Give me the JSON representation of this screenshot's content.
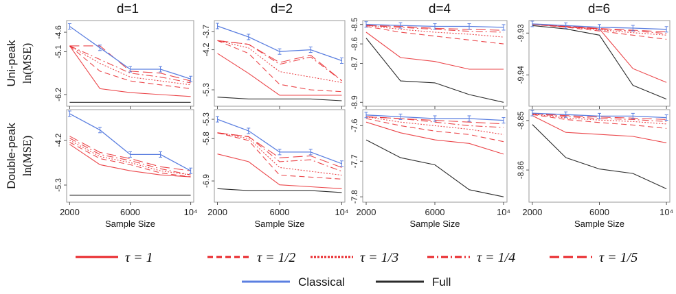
{
  "figure": {
    "column_titles": [
      "d=1",
      "d=2",
      "d=4",
      "d=6"
    ],
    "row_labels": [
      {
        "line1": "Uni-peak",
        "line2": "ln(MSE)"
      },
      {
        "line1": "Double-peak",
        "line2": "ln(MSE)"
      }
    ],
    "xlabel": "Sample Size",
    "xticks": [
      "2000",
      "6000",
      "10⁴"
    ],
    "colors": {
      "tau": "#e8262a",
      "classical": "#5b7fe0",
      "full": "#2b2b2b",
      "frame": "#9a9a9a"
    },
    "legend": [
      {
        "label": "τ = 1",
        "style": "solid",
        "color": "#e8262a"
      },
      {
        "label": "τ = 1/2",
        "style": "dashed",
        "color": "#e8262a"
      },
      {
        "label": "τ = 1/3",
        "style": "dotted",
        "color": "#e8262a"
      },
      {
        "label": "τ = 1/4",
        "style": "dashdot",
        "color": "#e8262a"
      },
      {
        "label": "τ = 1/5",
        "style": "longdash",
        "color": "#e8262a"
      },
      {
        "label": "Classical",
        "style": "solid",
        "color": "#5b7fe0"
      },
      {
        "label": "Full",
        "style": "solid",
        "color": "#2b2b2b"
      }
    ]
  },
  "chart_data": [
    {
      "type": "line",
      "title": "d=1",
      "row": "Uni-peak",
      "ylabel": "ln(MSE)",
      "xlabel": "",
      "x": [
        2000,
        4000,
        6000,
        8000,
        10000
      ],
      "ylim": [
        -6.5,
        -4.3
      ],
      "yticks": [
        -4.6,
        -5.1,
        -6.2
      ],
      "series": [
        {
          "name": "Classical",
          "values": [
            -4.45,
            -5.0,
            -5.55,
            -5.55,
            -5.8
          ]
        },
        {
          "name": "τ = 1/5",
          "values": [
            -4.95,
            -4.95,
            -5.6,
            -5.65,
            -5.85
          ]
        },
        {
          "name": "τ = 1/4",
          "values": [
            -4.95,
            -5.3,
            -5.65,
            -5.75,
            -5.9
          ]
        },
        {
          "name": "τ = 1/3",
          "values": [
            -4.95,
            -5.4,
            -5.75,
            -5.85,
            -5.95
          ]
        },
        {
          "name": "τ = 1/2",
          "values": [
            -4.95,
            -5.6,
            -5.85,
            -5.95,
            -6.05
          ]
        },
        {
          "name": "τ = 1",
          "values": [
            -4.95,
            -6.05,
            -6.15,
            -6.2,
            -6.25
          ]
        },
        {
          "name": "Full",
          "values": [
            -6.4,
            -6.4,
            -6.4,
            -6.4,
            -6.4
          ]
        }
      ]
    },
    {
      "type": "line",
      "title": "d=2",
      "row": "Uni-peak",
      "ylabel": "",
      "xlabel": "",
      "x": [
        2000,
        4000,
        6000,
        8000,
        10000
      ],
      "ylim": [
        -5.75,
        -3.4
      ],
      "yticks": [
        -3.7,
        -4.2,
        -5.3
      ],
      "series": [
        {
          "name": "Classical",
          "values": [
            -3.55,
            -3.85,
            -4.25,
            -4.2,
            -4.5
          ]
        },
        {
          "name": "τ = 1/5",
          "values": [
            -3.95,
            -4.05,
            -4.55,
            -4.35,
            -5.05
          ]
        },
        {
          "name": "τ = 1/4",
          "values": [
            -3.95,
            -4.05,
            -4.6,
            -4.4,
            -5.05
          ]
        },
        {
          "name": "τ = 1/3",
          "values": [
            -3.95,
            -4.15,
            -4.8,
            -4.95,
            -5.1
          ]
        },
        {
          "name": "τ = 1/2",
          "values": [
            -3.95,
            -4.3,
            -5.15,
            -5.3,
            -5.35
          ]
        },
        {
          "name": "τ = 1",
          "values": [
            -4.3,
            -4.85,
            -5.45,
            -5.45,
            -5.45
          ]
        },
        {
          "name": "Full",
          "values": [
            -5.5,
            -5.55,
            -5.55,
            -5.55,
            -5.6
          ]
        }
      ]
    },
    {
      "type": "line",
      "title": "d=4",
      "row": "Uni-peak",
      "ylabel": "",
      "xlabel": "",
      "x": [
        2000,
        4000,
        6000,
        8000,
        10000
      ],
      "ylim": [
        -8.92,
        -8.48
      ],
      "yticks": [
        -8.5,
        -8.6,
        -8.7,
        -8.9
      ],
      "series": [
        {
          "name": "Classical",
          "values": [
            -8.5,
            -8.505,
            -8.51,
            -8.51,
            -8.515
          ]
        },
        {
          "name": "τ = 1/5",
          "values": [
            -8.505,
            -8.51,
            -8.52,
            -8.525,
            -8.53
          ]
        },
        {
          "name": "τ = 1/4",
          "values": [
            -8.505,
            -8.515,
            -8.525,
            -8.535,
            -8.54
          ]
        },
        {
          "name": "τ = 1/3",
          "values": [
            -8.505,
            -8.525,
            -8.54,
            -8.55,
            -8.565
          ]
        },
        {
          "name": "τ = 1/2",
          "values": [
            -8.51,
            -8.54,
            -8.56,
            -8.58,
            -8.6
          ]
        },
        {
          "name": "τ = 1",
          "values": [
            -8.54,
            -8.67,
            -8.69,
            -8.73,
            -8.73
          ]
        },
        {
          "name": "Full",
          "values": [
            -8.57,
            -8.79,
            -8.8,
            -8.86,
            -8.9
          ]
        }
      ]
    },
    {
      "type": "line",
      "title": "d=6",
      "row": "Uni-peak",
      "ylabel": "",
      "xlabel": "",
      "x": [
        2000,
        4000,
        6000,
        8000,
        10000
      ],
      "ylim": [
        -9.9475,
        -9.927
      ],
      "yticks": [
        -9.93,
        -9.94
      ],
      "series": [
        {
          "name": "Classical",
          "values": [
            -9.9278,
            -9.9282,
            -9.9286,
            -9.9288,
            -9.9291
          ]
        },
        {
          "name": "τ = 1/5",
          "values": [
            -9.9278,
            -9.9283,
            -9.9289,
            -9.9293,
            -9.9297
          ]
        },
        {
          "name": "τ = 1/4",
          "values": [
            -9.9278,
            -9.9284,
            -9.929,
            -9.9295,
            -9.9301
          ]
        },
        {
          "name": "τ = 1/3",
          "values": [
            -9.9279,
            -9.9285,
            -9.9292,
            -9.9299,
            -9.9305
          ]
        },
        {
          "name": "τ = 1/2",
          "values": [
            -9.9279,
            -9.9286,
            -9.9295,
            -9.9305,
            -9.9315
          ]
        },
        {
          "name": "τ = 1",
          "values": [
            -9.9279,
            -9.9285,
            -9.929,
            -9.9385,
            -9.9418
          ]
        },
        {
          "name": "Full",
          "values": [
            -9.9282,
            -9.929,
            -9.9305,
            -9.9425,
            -9.9458
          ]
        }
      ]
    },
    {
      "type": "line",
      "title": "",
      "row": "Double-peak",
      "ylabel": "ln(MSE)",
      "xlabel": "Sample Size",
      "x": [
        2000,
        4000,
        6000,
        8000,
        10000
      ],
      "ylim": [
        -5.72,
        -3.45
      ],
      "yticks": [
        -4.2,
        -5.3
      ],
      "series": [
        {
          "name": "Classical",
          "values": [
            -3.55,
            -3.95,
            -4.55,
            -4.55,
            -4.95
          ]
        },
        {
          "name": "τ = 1/5",
          "values": [
            -4.1,
            -4.5,
            -4.65,
            -4.85,
            -4.95
          ]
        },
        {
          "name": "τ = 1/4",
          "values": [
            -4.15,
            -4.55,
            -4.7,
            -4.9,
            -5.05
          ]
        },
        {
          "name": "τ = 1/3",
          "values": [
            -4.2,
            -4.6,
            -4.75,
            -4.95,
            -5.05
          ]
        },
        {
          "name": "τ = 1/2",
          "values": [
            -4.25,
            -4.65,
            -4.8,
            -5.0,
            -5.1
          ]
        },
        {
          "name": "τ = 1",
          "values": [
            -4.3,
            -4.8,
            -4.95,
            -5.05,
            -5.1
          ]
        },
        {
          "name": "Full",
          "values": [
            -5.55,
            -5.55,
            -5.55,
            -5.55,
            -5.55
          ]
        }
      ]
    },
    {
      "type": "line",
      "title": "",
      "row": "Double-peak",
      "ylabel": "",
      "xlabel": "Sample Size",
      "x": [
        2000,
        4000,
        6000,
        8000,
        10000
      ],
      "ylim": [
        -7.45,
        -5.05
      ],
      "yticks": [
        -5.3,
        -5.8,
        -6.9
      ],
      "series": [
        {
          "name": "Classical",
          "values": [
            -5.3,
            -5.6,
            -6.15,
            -6.15,
            -6.45
          ]
        },
        {
          "name": "τ = 1/5",
          "values": [
            -5.65,
            -5.75,
            -6.3,
            -6.25,
            -6.55
          ]
        },
        {
          "name": "τ = 1/4",
          "values": [
            -5.65,
            -5.75,
            -6.4,
            -6.35,
            -6.65
          ]
        },
        {
          "name": "τ = 1/3",
          "values": [
            -5.65,
            -5.8,
            -6.55,
            -6.65,
            -6.75
          ]
        },
        {
          "name": "τ = 1/2",
          "values": [
            -5.65,
            -5.85,
            -6.75,
            -6.8,
            -6.85
          ]
        },
        {
          "name": "τ = 1",
          "values": [
            -6.2,
            -6.4,
            -7.0,
            -7.05,
            -7.1
          ]
        },
        {
          "name": "Full",
          "values": [
            -7.1,
            -7.15,
            -7.15,
            -7.15,
            -7.2
          ]
        }
      ]
    },
    {
      "type": "line",
      "title": "",
      "row": "Double-peak",
      "ylabel": "",
      "xlabel": "Sample Size",
      "x": [
        2000,
        4000,
        6000,
        8000,
        10000
      ],
      "ylim": [
        -7.815,
        -7.555
      ],
      "yticks": [
        -7.6,
        -7.7,
        -7.8
      ],
      "series": [
        {
          "name": "Classical",
          "values": [
            -7.57,
            -7.575,
            -7.58,
            -7.58,
            -7.585
          ]
        },
        {
          "name": "τ = 1/5",
          "values": [
            -7.575,
            -7.58,
            -7.585,
            -7.59,
            -7.595
          ]
        },
        {
          "name": "τ = 1/4",
          "values": [
            -7.575,
            -7.58,
            -7.59,
            -7.6,
            -7.605
          ]
        },
        {
          "name": "τ = 1/3",
          "values": [
            -7.575,
            -7.59,
            -7.6,
            -7.61,
            -7.625
          ]
        },
        {
          "name": "τ = 1/2",
          "values": [
            -7.58,
            -7.6,
            -7.615,
            -7.625,
            -7.645
          ]
        },
        {
          "name": "τ = 1",
          "values": [
            -7.59,
            -7.62,
            -7.64,
            -7.65,
            -7.68
          ]
        },
        {
          "name": "Full",
          "values": [
            -7.64,
            -7.69,
            -7.71,
            -7.78,
            -7.8
          ]
        }
      ]
    },
    {
      "type": "line",
      "title": "",
      "row": "Double-peak",
      "ylabel": "",
      "xlabel": "Sample Size",
      "x": [
        2000,
        4000,
        6000,
        8000,
        10000
      ],
      "ylim": [
        -8.8665,
        -8.8478
      ],
      "yticks": [
        -8.85,
        -8.86
      ],
      "series": [
        {
          "name": "Classical",
          "values": [
            -8.8485,
            -8.8488,
            -8.8491,
            -8.8491,
            -8.8494
          ]
        },
        {
          "name": "τ = 1/5",
          "values": [
            -8.8486,
            -8.849,
            -8.8493,
            -8.8495,
            -8.8498
          ]
        },
        {
          "name": "τ = 1/4",
          "values": [
            -8.8486,
            -8.8492,
            -8.8496,
            -8.8498,
            -8.8502
          ]
        },
        {
          "name": "τ = 1/3",
          "values": [
            -8.8487,
            -8.8495,
            -8.8499,
            -8.8502,
            -8.8507
          ]
        },
        {
          "name": "τ = 1/2",
          "values": [
            -8.8488,
            -8.8498,
            -8.8504,
            -8.8509,
            -8.8516
          ]
        },
        {
          "name": "τ = 1",
          "values": [
            -8.849,
            -8.8524,
            -8.8528,
            -8.8532,
            -8.8545
          ]
        },
        {
          "name": "Full",
          "values": [
            -8.8508,
            -8.8575,
            -8.8598,
            -8.8607,
            -8.8638
          ]
        }
      ]
    }
  ]
}
